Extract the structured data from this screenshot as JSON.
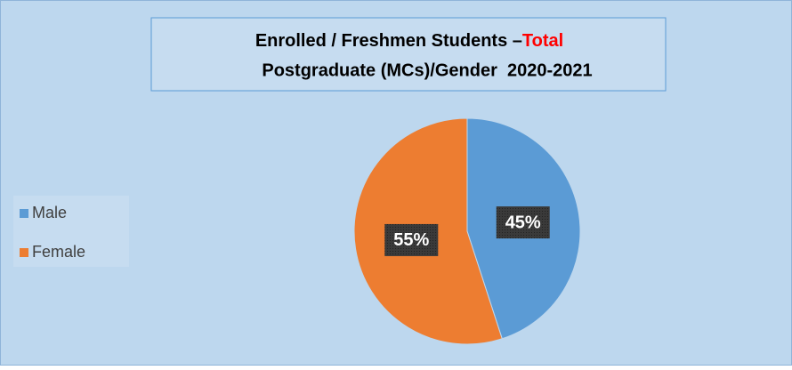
{
  "chart_data": {
    "type": "pie",
    "title_parts": [
      {
        "text": "Enrolled / Freshmen Students –",
        "color": "#000000"
      },
      {
        "text": "Total",
        "color": "#ff0000"
      },
      {
        "text": "Postgraduate (MCs)/Gender  2020-2021",
        "color": "#000000"
      }
    ],
    "categories": [
      "Male",
      "Female"
    ],
    "values": [
      45,
      55
    ],
    "value_labels": [
      "45%",
      "55%"
    ],
    "colors": [
      "#5b9bd5",
      "#ed7d31"
    ],
    "legend": "left"
  }
}
